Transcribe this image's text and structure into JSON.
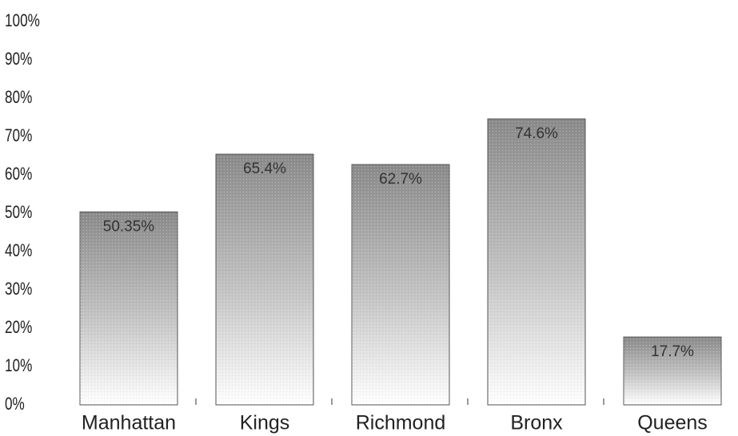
{
  "chart_data": {
    "type": "bar",
    "title": "",
    "xlabel": "",
    "ylabel": "",
    "categories": [
      "Manhattan",
      "Kings",
      "Richmond",
      "Bronx",
      "Queens"
    ],
    "values": [
      50.35,
      65.4,
      62.7,
      74.6,
      17.7
    ],
    "data_labels": [
      "50.35%",
      "65.4%",
      "62.7%",
      "74.6%",
      "17.7%"
    ],
    "ylim": [
      0,
      100
    ],
    "yticks": [
      0,
      10,
      20,
      30,
      40,
      50,
      60,
      70,
      80,
      90,
      100
    ],
    "ytick_labels": [
      "0%",
      "10%",
      "20%",
      "30%",
      "40%",
      "50%",
      "60%",
      "70%",
      "80%",
      "90%",
      "100%"
    ],
    "grid": false,
    "legend": "none",
    "colors": {
      "bar_top": "#8a8a8a",
      "bar_bottom": "#ffffff",
      "bar_stroke": "#555555",
      "text": "#222222"
    }
  }
}
